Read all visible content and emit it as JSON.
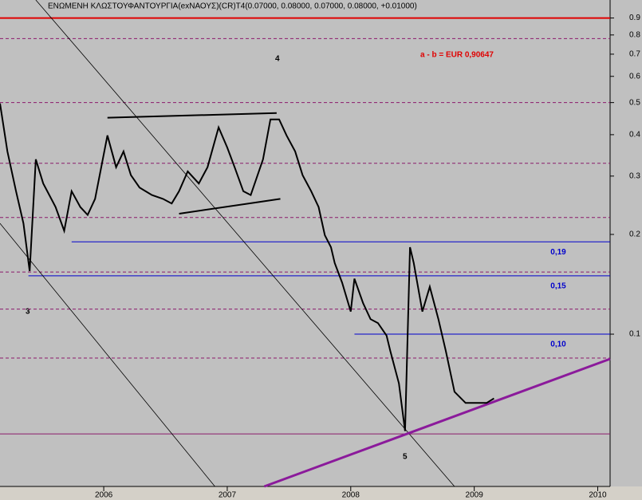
{
  "chart_data": {
    "type": "line",
    "title": "ΕΝΩΜΕΝΗ ΚΛΩΣΤΟΥΦΑΝΤΟΥΡΓΙΑ(exΝΑΟΥΣ)(CR)T4(0.07000, 0.08000, 0.07000, 0.08000, +0.01000)",
    "x": [
      2005.16,
      2005.22,
      2005.29,
      2005.35,
      2005.4,
      2005.45,
      2005.51,
      2005.61,
      2005.68,
      2005.74,
      2005.81,
      2005.87,
      2005.93,
      2006.03,
      2006.1,
      2006.16,
      2006.22,
      2006.29,
      2006.39,
      2006.48,
      2006.55,
      2006.61,
      2006.68,
      2006.77,
      2006.84,
      2006.93,
      2007.0,
      2007.06,
      2007.13,
      2007.19,
      2007.29,
      2007.35,
      2007.42,
      2007.48,
      2007.55,
      2007.61,
      2007.68,
      2007.74,
      2007.79,
      2007.84,
      2007.87,
      2007.93,
      2008.0,
      2008.03,
      2008.1,
      2008.16,
      2008.22,
      2008.29,
      2008.32,
      2008.39,
      2008.44,
      2008.48,
      2008.51,
      2008.58,
      2008.64,
      2008.71,
      2008.77,
      2008.84,
      2008.93,
      2009.03,
      2009.1,
      2009.16
    ],
    "series": [
      {
        "color": "#000000",
        "values": [
          0.497,
          0.356,
          0.27,
          0.216,
          0.155,
          0.337,
          0.285,
          0.242,
          0.205,
          0.27,
          0.242,
          0.229,
          0.256,
          0.398,
          0.319,
          0.356,
          0.302,
          0.277,
          0.263,
          0.256,
          0.248,
          0.27,
          0.31,
          0.285,
          0.319,
          0.421,
          0.366,
          0.319,
          0.27,
          0.263,
          0.337,
          0.445,
          0.445,
          0.398,
          0.356,
          0.302,
          0.27,
          0.242,
          0.199,
          0.183,
          0.164,
          0.143,
          0.117,
          0.147,
          0.124,
          0.111,
          0.108,
          0.099,
          0.089,
          0.071,
          0.051,
          0.183,
          0.164,
          0.117,
          0.139,
          0.111,
          0.089,
          0.067,
          0.062,
          0.062,
          0.062,
          0.064
        ]
      }
    ],
    "log_scale": true,
    "xlim": [
      2005.16,
      2010.1
    ],
    "xticks": [
      2006,
      2007,
      2008,
      2009,
      2010
    ],
    "ylim": [
      0.0347,
      1.02
    ],
    "yticks": [
      0.1,
      0.2,
      0.3,
      0.4,
      0.5,
      0.6,
      0.7,
      0.8,
      0.9
    ],
    "support_levels": [
      {
        "value": 0.19,
        "label": "0,19",
        "start": 2005.74
      },
      {
        "value": 0.15,
        "label": "0,15",
        "start": 2005.39
      },
      {
        "value": 0.1,
        "label": "0,10",
        "start": 2008.03
      }
    ],
    "support_color": "#0000cc",
    "red_level": 0.9,
    "dashed_levels": [
      0.78,
      0.5,
      0.328,
      0.225,
      0.154,
      0.119,
      0.0847
    ],
    "base_level": 0.05,
    "trendlines": [
      {
        "x": [
          2006.03,
          2007.4
        ],
        "y": [
          0.45,
          0.465
        ],
        "color": "#000000",
        "width": 2
      },
      {
        "x": [
          2006.61,
          2007.43
        ],
        "y": [
          0.231,
          0.256
        ],
        "color": "#000000",
        "width": 2
      },
      {
        "x": [
          2005.45,
          2008.84
        ],
        "y": [
          1.02,
          0.0347
        ],
        "color": "#000000",
        "width": 0.8
      },
      {
        "x": [
          2005.16,
          2006.9
        ],
        "y": [
          0.216,
          0.0347
        ],
        "color": "#000000",
        "width": 0.8
      },
      {
        "x": [
          2007.3,
          2010.1
        ],
        "y": [
          0.0347,
          0.0842
        ],
        "color": "#8b1a9b",
        "width": 3
      }
    ],
    "annotations": [
      "4",
      "3",
      "5",
      "a - b = EUR 0,90647"
    ]
  }
}
